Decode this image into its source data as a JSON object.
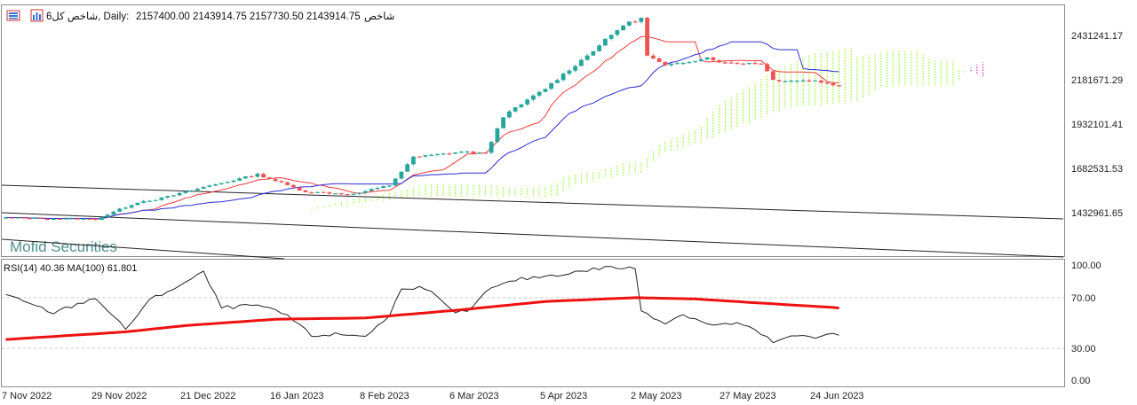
{
  "header": {
    "symbol_text": "شاخص کل6, Daily:",
    "ohlc_text": "2157400.00 2143914.75 2157730.50 2143914.75",
    "trail_text": "شاخص"
  },
  "watermark": "Mofid Securities",
  "colors": {
    "up": "#26a69a",
    "down": "#ef5350",
    "tenkan": "#ef3b3b",
    "kijun": "#2b2bd6",
    "senkou_bull": "#7cfc00",
    "senkou_bear": "#ee00aa",
    "rsi_line": "#222222",
    "rsi_ma": "#ee1111",
    "trendline": "#222222"
  },
  "icons": [
    "chart-window-icon",
    "bar-chart-icon"
  ],
  "chart_data": [
    {
      "type": "candlestick",
      "title": "شاخص کل6, Daily",
      "indicators": [
        "Ichimoku",
        "Trendlines"
      ],
      "y_ticks": [
        2431241.17,
        2181671.29,
        1932101.41,
        1682531.53,
        1432961.65
      ],
      "y_tick_labels": [
        "2431241.17",
        "2181671.29",
        "1932101.41",
        "1682531.53",
        "1432961.65"
      ],
      "ylim": [
        1230000,
        2575000
      ],
      "x_tick_labels": [
        "7 Nov 2022",
        "29 Nov 2022",
        "21 Dec 2022",
        "16 Jan 2023",
        "8 Feb 2023",
        "6 Mar 2023",
        "5 Apr 2023",
        "2 May 2023",
        "27 May 2023",
        "24 Jun 2023"
      ],
      "x_tick_index": [
        0,
        15,
        30,
        45,
        60,
        75,
        90,
        105,
        120,
        135
      ],
      "num_bars": 140,
      "future_bars": 24,
      "last_close": 2143914.75,
      "price_path": [
        [
          0,
          1435000
        ],
        [
          15,
          1428000
        ],
        [
          22,
          1520000
        ],
        [
          26,
          1540000
        ],
        [
          33,
          1600000
        ],
        [
          42,
          1668000
        ],
        [
          50,
          1575000
        ],
        [
          58,
          1562000
        ],
        [
          64,
          1610000
        ],
        [
          68,
          1760000
        ],
        [
          76,
          1790000
        ],
        [
          80,
          1780000
        ],
        [
          83,
          1980000
        ],
        [
          90,
          2130000
        ],
        [
          96,
          2280000
        ],
        [
          103,
          2470000
        ],
        [
          106,
          2505000
        ],
        [
          107,
          2305000
        ],
        [
          110,
          2250000
        ],
        [
          117,
          2295000
        ],
        [
          120,
          2265000
        ],
        [
          126,
          2265000
        ],
        [
          128,
          2175000
        ],
        [
          135,
          2170000
        ],
        [
          139,
          2145000
        ]
      ]
    },
    {
      "type": "line",
      "title": "RSI(14) 40.36 MA(100) 61.801",
      "rsi_value": 40.36,
      "ma_value": 61.801,
      "y_ticks": [
        100,
        70,
        30,
        0
      ],
      "y_tick_labels": [
        "100.00",
        "70.00",
        "30.00",
        "0.00"
      ],
      "ylim": [
        0,
        100
      ],
      "rsi_path": [
        [
          0,
          72
        ],
        [
          8,
          58
        ],
        [
          15,
          70
        ],
        [
          20,
          45
        ],
        [
          24,
          68
        ],
        [
          30,
          82
        ],
        [
          33,
          90
        ],
        [
          36,
          62
        ],
        [
          42,
          64
        ],
        [
          47,
          56
        ],
        [
          51,
          40
        ],
        [
          55,
          41
        ],
        [
          60,
          40
        ],
        [
          64,
          55
        ],
        [
          66,
          78
        ],
        [
          70,
          78
        ],
        [
          75,
          57
        ],
        [
          78,
          62
        ],
        [
          80,
          75
        ],
        [
          85,
          84
        ],
        [
          90,
          87
        ],
        [
          95,
          90
        ],
        [
          100,
          94
        ],
        [
          105,
          93
        ],
        [
          106,
          60
        ],
        [
          110,
          50
        ],
        [
          113,
          57
        ],
        [
          118,
          48
        ],
        [
          122,
          50
        ],
        [
          125,
          44
        ],
        [
          128,
          35
        ],
        [
          132,
          40
        ],
        [
          135,
          38
        ],
        [
          138,
          43
        ],
        [
          139,
          40
        ]
      ],
      "ma_path": [
        [
          0,
          37
        ],
        [
          20,
          43
        ],
        [
          30,
          48
        ],
        [
          45,
          53
        ],
        [
          60,
          54
        ],
        [
          75,
          60
        ],
        [
          90,
          67
        ],
        [
          105,
          70
        ],
        [
          115,
          69
        ],
        [
          125,
          66
        ],
        [
          139,
          62
        ]
      ]
    }
  ]
}
